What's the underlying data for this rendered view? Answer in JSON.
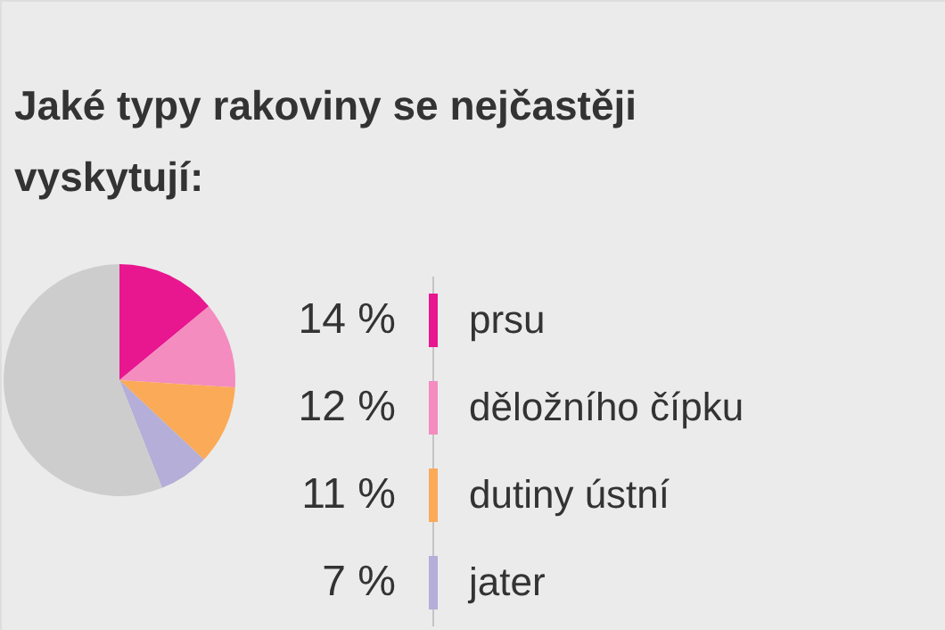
{
  "chart_data": {
    "type": "pie",
    "title": "Jaké typy rakoviny se nejčastěji vyskytují:",
    "categories": [
      "prsu",
      "děložního čípku",
      "dutiny ústní",
      "jater",
      null
    ],
    "values": [
      14,
      12,
      11,
      7,
      56
    ],
    "colors": [
      "#e8168f",
      "#f48cbf",
      "#fbaa58",
      "#b4aed8",
      "#cdcdcd"
    ],
    "value_labels": [
      "14 %",
      "12 %",
      "11 %",
      "7 %",
      null
    ],
    "legend": "right"
  }
}
